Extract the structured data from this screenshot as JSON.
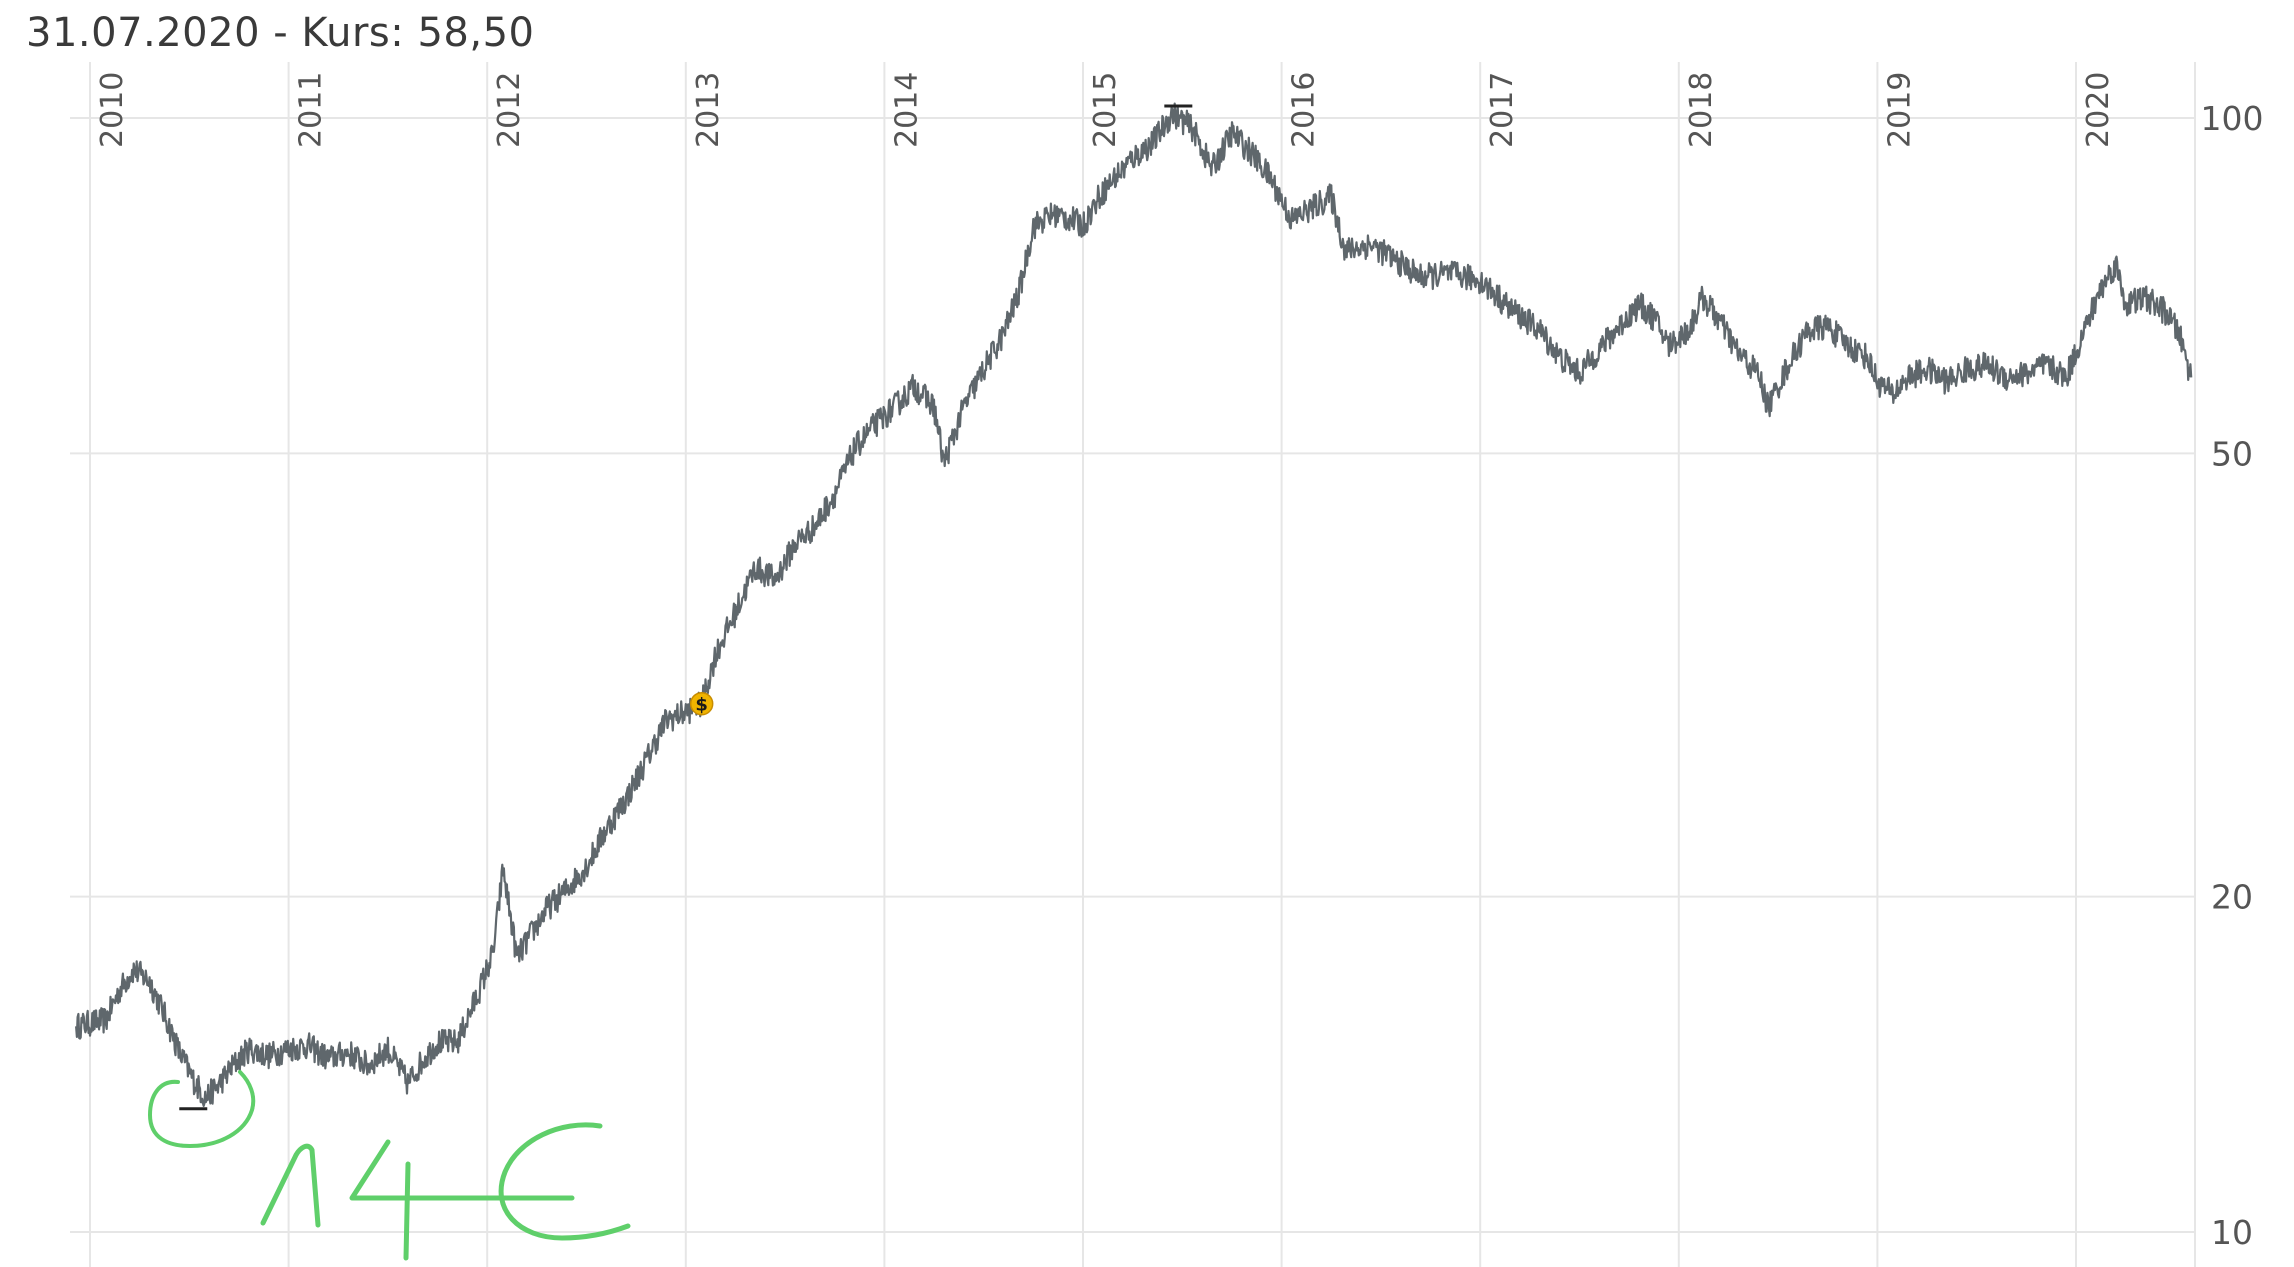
{
  "header": {
    "date": "31.07.2020",
    "kurs_label": " - Kurs: 58,50"
  },
  "chart_data": {
    "type": "line",
    "scale": "log",
    "grid": true,
    "ylim": [
      10,
      100
    ],
    "yticks": [
      10,
      20,
      50,
      100
    ],
    "ytick_labels": [
      "10",
      "20",
      "50",
      "100"
    ],
    "xlim": [
      2009.92,
      2020.58
    ],
    "xticks": [
      2010,
      2011,
      2012,
      2013,
      2014,
      2015,
      2016,
      2017,
      2018,
      2019,
      2020
    ],
    "xtick_labels": [
      "2010",
      "2011",
      "2012",
      "2013",
      "2014",
      "2015",
      "2016",
      "2017",
      "2018",
      "2019",
      "2020"
    ],
    "series": [
      {
        "color": "#5f676c",
        "points": [
          [
            2009.93,
            15.3
          ],
          [
            2010.0,
            15.4
          ],
          [
            2010.08,
            15.5
          ],
          [
            2010.15,
            16.5
          ],
          [
            2010.22,
            17.2
          ],
          [
            2010.3,
            16.8
          ],
          [
            2010.38,
            15.6
          ],
          [
            2010.45,
            14.5
          ],
          [
            2010.52,
            13.7
          ],
          [
            2010.58,
            13.2
          ],
          [
            2010.64,
            13.5
          ],
          [
            2010.72,
            14.1
          ],
          [
            2010.8,
            14.6
          ],
          [
            2010.9,
            14.4
          ],
          [
            2011.0,
            14.6
          ],
          [
            2011.1,
            14.7
          ],
          [
            2011.2,
            14.3
          ],
          [
            2011.3,
            14.5
          ],
          [
            2011.4,
            14.1
          ],
          [
            2011.5,
            14.6
          ],
          [
            2011.6,
            13.6
          ],
          [
            2011.68,
            14.3
          ],
          [
            2011.75,
            14.8
          ],
          [
            2011.85,
            14.8
          ],
          [
            2011.95,
            16.3
          ],
          [
            2012.03,
            17.8
          ],
          [
            2012.08,
            21.2
          ],
          [
            2012.15,
            17.6
          ],
          [
            2012.22,
            18.5
          ],
          [
            2012.3,
            19.5
          ],
          [
            2012.4,
            20.3
          ],
          [
            2012.5,
            21.3
          ],
          [
            2012.6,
            23.0
          ],
          [
            2012.7,
            24.5
          ],
          [
            2012.8,
            26.5
          ],
          [
            2012.9,
            28.8
          ],
          [
            2013.0,
            29.3
          ],
          [
            2013.08,
            29.8
          ],
          [
            2013.15,
            33.0
          ],
          [
            2013.25,
            36.0
          ],
          [
            2013.35,
            39.5
          ],
          [
            2013.45,
            38.5
          ],
          [
            2013.55,
            41.5
          ],
          [
            2013.65,
            43.0
          ],
          [
            2013.75,
            46.0
          ],
          [
            2013.85,
            50.5
          ],
          [
            2013.95,
            53.0
          ],
          [
            2014.05,
            55.0
          ],
          [
            2014.15,
            57.5
          ],
          [
            2014.25,
            55.0
          ],
          [
            2014.3,
            49.0
          ],
          [
            2014.4,
            55.0
          ],
          [
            2014.5,
            59.5
          ],
          [
            2014.6,
            64.0
          ],
          [
            2014.68,
            70.0
          ],
          [
            2014.75,
            80.0
          ],
          [
            2014.85,
            82.0
          ],
          [
            2014.95,
            81.0
          ],
          [
            2015.0,
            80.0
          ],
          [
            2015.08,
            85.0
          ],
          [
            2015.15,
            88.0
          ],
          [
            2015.25,
            92.0
          ],
          [
            2015.35,
            95.0
          ],
          [
            2015.45,
            101.0
          ],
          [
            2015.55,
            98.0
          ],
          [
            2015.65,
            90.0
          ],
          [
            2015.75,
            97.0
          ],
          [
            2015.85,
            93.0
          ],
          [
            2015.95,
            88.0
          ],
          [
            2016.05,
            81.0
          ],
          [
            2016.15,
            83.0
          ],
          [
            2016.25,
            85.0
          ],
          [
            2016.32,
            76.0
          ],
          [
            2016.45,
            77.0
          ],
          [
            2016.55,
            75.0
          ],
          [
            2016.7,
            72.0
          ],
          [
            2016.85,
            72.5
          ],
          [
            2017.0,
            71.5
          ],
          [
            2017.15,
            67.5
          ],
          [
            2017.3,
            64.5
          ],
          [
            2017.4,
            61.0
          ],
          [
            2017.5,
            59.0
          ],
          [
            2017.6,
            62.0
          ],
          [
            2017.7,
            65.0
          ],
          [
            2017.8,
            68.0
          ],
          [
            2017.88,
            66.0
          ],
          [
            2017.95,
            62.5
          ],
          [
            2018.05,
            64.5
          ],
          [
            2018.12,
            69.0
          ],
          [
            2018.2,
            66.0
          ],
          [
            2018.3,
            61.5
          ],
          [
            2018.4,
            59.0
          ],
          [
            2018.45,
            55.0
          ],
          [
            2018.55,
            60.0
          ],
          [
            2018.65,
            64.5
          ],
          [
            2018.75,
            65.0
          ],
          [
            2018.85,
            62.5
          ],
          [
            2018.95,
            61.0
          ],
          [
            2019.0,
            58.0
          ],
          [
            2019.08,
            56.5
          ],
          [
            2019.15,
            58.5
          ],
          [
            2019.25,
            59.5
          ],
          [
            2019.35,
            58.0
          ],
          [
            2019.45,
            59.5
          ],
          [
            2019.55,
            60.0
          ],
          [
            2019.65,
            58.5
          ],
          [
            2019.75,
            59.0
          ],
          [
            2019.85,
            60.0
          ],
          [
            2019.95,
            58.5
          ],
          [
            2020.05,
            65.0
          ],
          [
            2020.12,
            70.0
          ],
          [
            2020.2,
            74.0
          ],
          [
            2020.25,
            68.0
          ],
          [
            2020.35,
            69.0
          ],
          [
            2020.45,
            67.0
          ],
          [
            2020.52,
            64.0
          ],
          [
            2020.58,
            58.5
          ]
        ]
      }
    ],
    "annotations": {
      "low_marker": {
        "x": 2010.52,
        "y": 12.9
      },
      "high_marker": {
        "x": 2015.48,
        "y": 102.5
      },
      "dividend_marker": {
        "x": 2013.08,
        "y": 29.8,
        "symbol": "$",
        "color": "#f0b400"
      },
      "handwritten_note": {
        "text": "14€",
        "color": "#5fcf6a"
      }
    }
  }
}
